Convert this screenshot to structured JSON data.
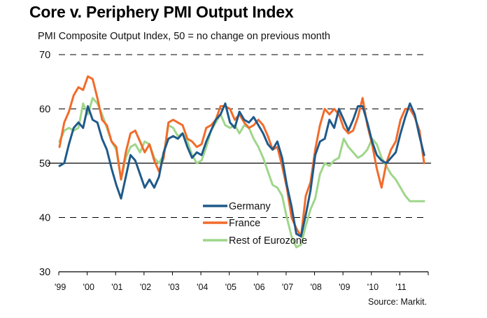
{
  "chart_data": {
    "type": "line",
    "title": "Core v. Periphery PMI Output Index",
    "subtitle": "PMI Composite Output Index, 50 = no change on previous month",
    "source": "Source: Markit.",
    "xlabel": "",
    "ylabel": "",
    "ylim": [
      30,
      70
    ],
    "yticks": [
      30,
      40,
      50,
      60,
      70
    ],
    "xtick_labels": [
      "'99",
      "'00",
      "'01",
      "'02",
      "'03",
      "'04",
      "'05",
      "'06",
      "'07",
      "'08",
      "'09",
      "'10",
      "'11"
    ],
    "x_start": "Jan 1999",
    "x_step": "2 months",
    "grid": "dashed horizontal at 40, 60, 70; solid reference line at 50",
    "legend_position": "center-bottom",
    "series": [
      {
        "name": "Germany",
        "color": "#1F5A8A",
        "values": [
          49.5,
          50.0,
          53.5,
          56.5,
          57.5,
          56.5,
          60.5,
          58.0,
          57.5,
          54.5,
          52.5,
          49.0,
          46.0,
          43.5,
          47.5,
          51.5,
          50.5,
          48.0,
          45.5,
          47.0,
          45.5,
          47.5,
          52.0,
          54.5,
          55.0,
          54.5,
          55.5,
          53.0,
          51.0,
          52.0,
          51.5,
          54.0,
          56.0,
          58.0,
          59.0,
          61.0,
          57.5,
          56.5,
          59.5,
          58.0,
          57.5,
          58.5,
          57.0,
          55.5,
          53.5,
          52.5,
          54.0,
          51.0,
          46.0,
          42.0,
          37.0,
          36.5,
          40.5,
          45.0,
          51.5,
          54.0,
          54.5,
          58.0,
          56.5,
          60.0,
          58.0,
          56.0,
          58.0,
          60.5,
          60.5,
          57.5,
          54.0,
          51.5,
          50.5,
          50.0,
          51.0,
          52.0,
          55.5,
          58.5,
          61.0,
          59.0,
          55.0,
          51.5
        ]
      },
      {
        "name": "France",
        "color": "#F26B2A",
        "values": [
          53.0,
          57.5,
          59.5,
          62.5,
          64.0,
          63.5,
          66.0,
          65.5,
          62.0,
          58.0,
          57.0,
          54.0,
          53.0,
          47.0,
          52.0,
          55.5,
          56.0,
          54.0,
          52.0,
          53.5,
          50.5,
          48.5,
          51.0,
          57.5,
          58.0,
          57.5,
          57.0,
          54.5,
          54.0,
          53.0,
          53.5,
          56.5,
          57.0,
          58.0,
          60.5,
          60.5,
          60.0,
          58.0,
          59.0,
          57.5,
          56.5,
          57.0,
          58.0,
          57.0,
          55.0,
          52.5,
          53.0,
          49.5,
          45.5,
          40.0,
          38.0,
          36.5,
          44.0,
          46.5,
          52.5,
          57.0,
          60.0,
          59.0,
          60.0,
          59.0,
          56.5,
          55.5,
          56.0,
          58.5,
          62.0,
          57.0,
          53.5,
          49.0,
          45.5,
          50.0,
          52.5,
          54.0,
          58.0,
          60.0,
          60.0,
          58.5,
          56.0,
          50.0
        ]
      },
      {
        "name": "Rest of Eurozone",
        "color": "#9FD68A",
        "values": [
          54.0,
          56.0,
          56.5,
          56.0,
          56.5,
          61.0,
          59.0,
          62.0,
          61.0,
          59.0,
          56.5,
          54.0,
          52.5,
          47.0,
          51.0,
          53.0,
          53.5,
          52.0,
          54.0,
          53.5,
          51.0,
          50.0,
          51.5,
          57.0,
          56.5,
          55.0,
          55.5,
          54.0,
          51.5,
          50.0,
          50.5,
          53.0,
          56.0,
          57.5,
          59.0,
          57.0,
          56.5,
          57.0,
          55.5,
          57.0,
          56.5,
          54.5,
          53.0,
          51.0,
          48.5,
          46.0,
          45.5,
          44.0,
          40.0,
          36.5,
          34.5,
          35.0,
          38.5,
          41.5,
          43.5,
          48.0,
          50.0,
          49.5,
          50.5,
          51.0,
          54.5,
          53.0,
          52.0,
          51.0,
          51.5,
          52.5,
          54.5,
          53.5,
          51.0,
          49.5,
          48.0,
          47.0,
          45.5,
          44.0,
          43.0,
          43.0,
          43.0,
          43.0
        ]
      }
    ]
  }
}
